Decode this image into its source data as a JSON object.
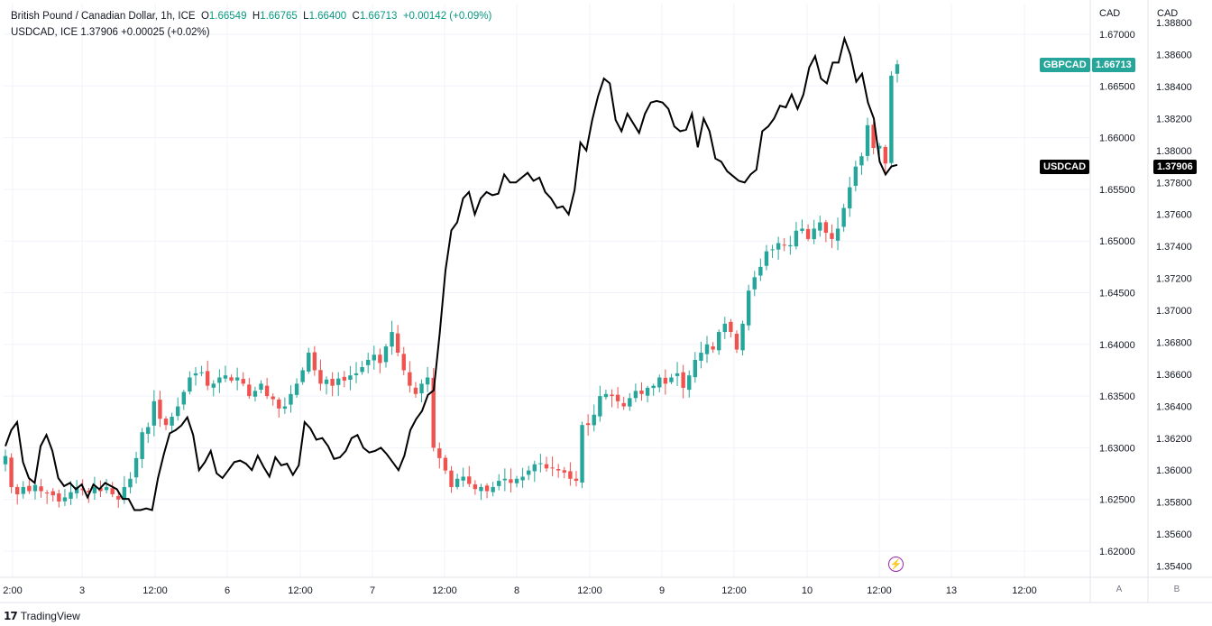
{
  "legend": {
    "symbol_title": "British Pound / Canadian Dollar, 1h, ICE",
    "o_label": "O",
    "o_value": "1.66549",
    "h_label": "H",
    "h_value": "1.66765",
    "l_label": "L",
    "l_value": "1.66400",
    "c_label": "C",
    "c_value": "1.66713",
    "change": "+0.00142 (+0.09%)",
    "compare_line": "USDCAD, ICE  1.37906  +0.00025 (+0.02%)"
  },
  "axes": {
    "left_unit": "CAD",
    "right_unit": "CAD",
    "scale_a": "A",
    "scale_b": "B"
  },
  "tags": {
    "gbpcad_label": "GBPCAD",
    "gbpcad_value": "1.66713",
    "usdcad_label": "USDCAD",
    "usdcad_value": "1.37906"
  },
  "branding": {
    "logo_text": "TradingView",
    "logo_mark": "17"
  },
  "colors": {
    "up": "#26a69a",
    "down": "#ef5350",
    "compare_line": "#000000",
    "grid": "#f0f3fa"
  },
  "chart_data": {
    "type": "candlestick",
    "x_tick_labels": [
      "2:00",
      "3",
      "12:00",
      "6",
      "12:00",
      "7",
      "12:00",
      "8",
      "12:00",
      "9",
      "12:00",
      "10",
      "12:00",
      "13",
      "12:00"
    ],
    "y_left_ticks": [
      "1.67000",
      "1.66500",
      "1.66000",
      "1.65500",
      "1.65000",
      "1.64500",
      "1.64000",
      "1.63500",
      "1.63000",
      "1.62500",
      "1.62000"
    ],
    "y_right_ticks": [
      "1.38800",
      "1.38600",
      "1.38400",
      "1.38200",
      "1.38000",
      "1.37800",
      "1.37600",
      "1.37400",
      "1.37200",
      "1.37000",
      "1.36800",
      "1.36600",
      "1.36400",
      "1.36200",
      "1.36000",
      "1.35800",
      "1.35600",
      "1.35400"
    ],
    "gbpcad_closes": [
      1.6292,
      1.6262,
      1.6255,
      1.6262,
      1.6258,
      1.6264,
      1.6258,
      1.6256,
      1.6254,
      1.6248,
      1.6252,
      1.6257,
      1.6262,
      1.6259,
      1.6257,
      1.6262,
      1.6258,
      1.6262,
      1.6255,
      1.625,
      1.6262,
      1.627,
      1.629,
      1.6315,
      1.632,
      1.6345,
      1.6328,
      1.6322,
      1.633,
      1.634,
      1.6354,
      1.6368,
      1.6372,
      1.6373,
      1.636,
      1.6362,
      1.6368,
      1.637,
      1.6365,
      1.6368,
      1.6362,
      1.635,
      1.6355,
      1.6362,
      1.635,
      1.6347,
      1.6338,
      1.634,
      1.6352,
      1.6362,
      1.6375,
      1.6392,
      1.6375,
      1.6362,
      1.6366,
      1.636,
      1.6367,
      1.6365,
      1.637,
      1.6372,
      1.6378,
      1.6385,
      1.639,
      1.6382,
      1.6398,
      1.6412,
      1.6392,
      1.6375,
      1.636,
      1.6352,
      1.6362,
      1.6368,
      1.63,
      1.629,
      1.6278,
      1.6262,
      1.627,
      1.6272,
      1.6265,
      1.626,
      1.6262,
      1.6258,
      1.6262,
      1.6268,
      1.627,
      1.6266,
      1.627,
      1.6272,
      1.6278,
      1.6284,
      1.6285,
      1.628,
      1.628,
      1.6278,
      1.6276,
      1.627,
      1.6268,
      1.6322,
      1.6322,
      1.6332,
      1.635,
      1.6352,
      1.635,
      1.6345,
      1.634,
      1.6348,
      1.6355,
      1.6352,
      1.6358,
      1.636,
      1.6368,
      1.6362,
      1.6368,
      1.6372,
      1.6358,
      1.637,
      1.6385,
      1.6392,
      1.64,
      1.6395,
      1.6412,
      1.642,
      1.6412,
      1.6395,
      1.642,
      1.6452,
      1.6465,
      1.6475,
      1.649,
      1.6492,
      1.6498,
      1.6496,
      1.6496,
      1.651,
      1.6512,
      1.6502,
      1.6512,
      1.6518,
      1.6508,
      1.6502,
      1.6512,
      1.6532,
      1.6552,
      1.6572,
      1.6582,
      1.6612,
      1.659,
      1.6592,
      1.6575,
      1.666,
      1.6671
    ],
    "usdcad_closes": [
      1.3615,
      1.3625,
      1.363,
      1.3605,
      1.3595,
      1.3592,
      1.3615,
      1.3622,
      1.3612,
      1.3595,
      1.359,
      1.3592,
      1.3588,
      1.3591,
      1.3583,
      1.3591,
      1.3588,
      1.3592,
      1.359,
      1.3588,
      1.3582,
      1.3582,
      1.3575,
      1.3575,
      1.3576,
      1.3575,
      1.3595,
      1.361,
      1.3623,
      1.3625,
      1.3628,
      1.3633,
      1.3622,
      1.36,
      1.3605,
      1.3612,
      1.3598,
      1.3595,
      1.36,
      1.3605,
      1.3606,
      1.3604,
      1.36,
      1.3609,
      1.3602,
      1.3596,
      1.3608,
      1.3603,
      1.3604,
      1.3597,
      1.3603,
      1.363,
      1.3626,
      1.3619,
      1.362,
      1.3615,
      1.3607,
      1.3608,
      1.3612,
      1.362,
      1.3622,
      1.3614,
      1.3611,
      1.3612,
      1.3614,
      1.361,
      1.3605,
      1.36,
      1.3609,
      1.3625,
      1.3632,
      1.3637,
      1.3647,
      1.365,
      1.3685,
      1.3725,
      1.375,
      1.3755,
      1.377,
      1.3774,
      1.376,
      1.377,
      1.3774,
      1.3772,
      1.3773,
      1.3785,
      1.378,
      1.378,
      1.3783,
      1.3786,
      1.3781,
      1.3783,
      1.3774,
      1.377,
      1.3764,
      1.3765,
      1.376,
      1.3775,
      1.3805,
      1.38,
      1.3819,
      1.3834,
      1.3845,
      1.3842,
      1.3819,
      1.3812,
      1.3823,
      1.3817,
      1.3811,
      1.3823,
      1.383,
      1.3831,
      1.383,
      1.3826,
      1.3815,
      1.3812,
      1.3813,
      1.3823,
      1.3802,
      1.382,
      1.3812,
      1.3795,
      1.3793,
      1.3787,
      1.3784,
      1.3781,
      1.378,
      1.3785,
      1.3788,
      1.3812,
      1.3815,
      1.382,
      1.3828,
      1.3827,
      1.3835,
      1.3826,
      1.3835,
      1.3852,
      1.3859,
      1.3845,
      1.3842,
      1.3855,
      1.3855,
      1.387,
      1.386,
      1.3843,
      1.3848,
      1.383,
      1.382,
      1.3793,
      1.3785,
      1.379,
      1.3791
    ]
  }
}
